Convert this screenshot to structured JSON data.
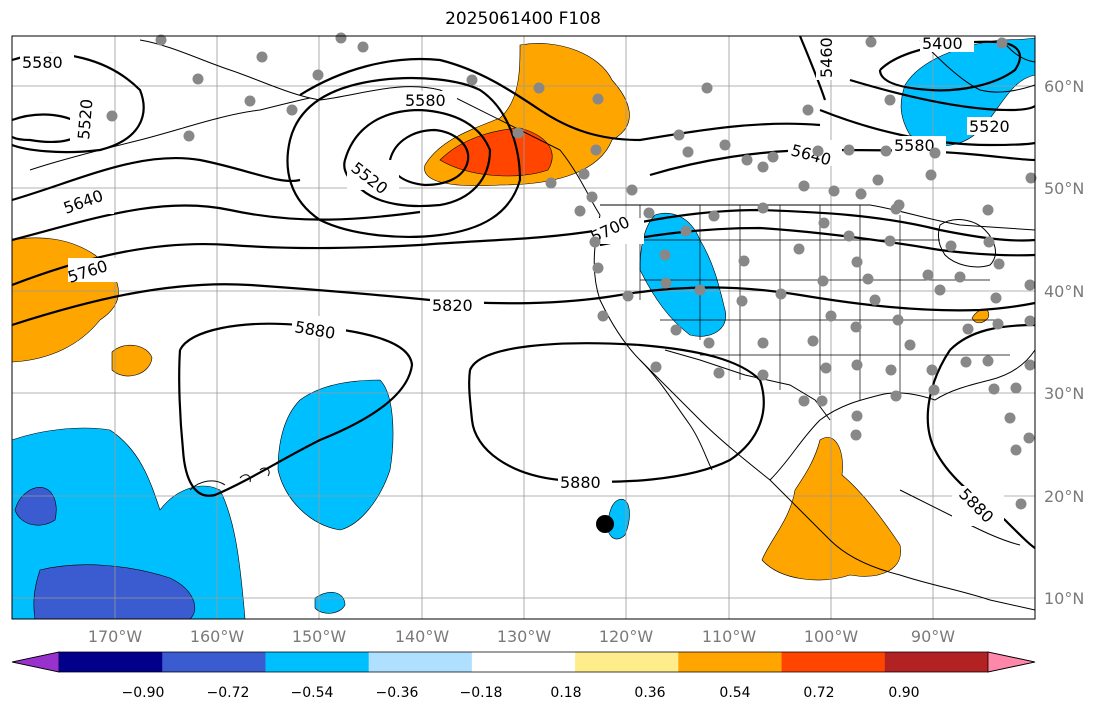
{
  "title": "2025061400 F108",
  "map": {
    "lon_range": [
      -180,
      -80
    ],
    "lat_range": [
      8,
      65
    ],
    "gridlines": true,
    "lon_labels": [
      "170°W",
      "160°W",
      "150°W",
      "140°W",
      "130°W",
      "120°W",
      "110°W",
      "100°W",
      "90°W"
    ],
    "lat_labels": [
      "10°N",
      "20°N",
      "30°N",
      "40°N",
      "50°N",
      "60°N"
    ],
    "contour_labels": [
      "5580",
      "5520",
      "5640",
      "5760",
      "5580",
      "5520",
      "5700",
      "5820",
      "5880",
      "5880",
      "5460",
      "5400",
      "5520",
      "5580",
      "5640",
      "5880"
    ],
    "marker": "black dot near 122°W 17°N",
    "colors": {
      "neg_strong": "#3b5bd1",
      "neg_mid": "#00bfff",
      "pos_mid": "#ffa500",
      "pos_strong": "#ff4500",
      "station": "#888888"
    }
  },
  "colorbar": {
    "ticks": [
      "−0.90",
      "−0.72",
      "−0.54",
      "−0.36",
      "−0.18",
      "0.18",
      "0.36",
      "0.54",
      "0.72",
      "0.90"
    ],
    "colors": [
      "#9932cc",
      "#00008b",
      "#3b5bd1",
      "#00bfff",
      "#b0e0ff",
      "#ffffff",
      "#ffec8b",
      "#ffa500",
      "#ff4500",
      "#b22222",
      "#ff88aa"
    ]
  }
}
